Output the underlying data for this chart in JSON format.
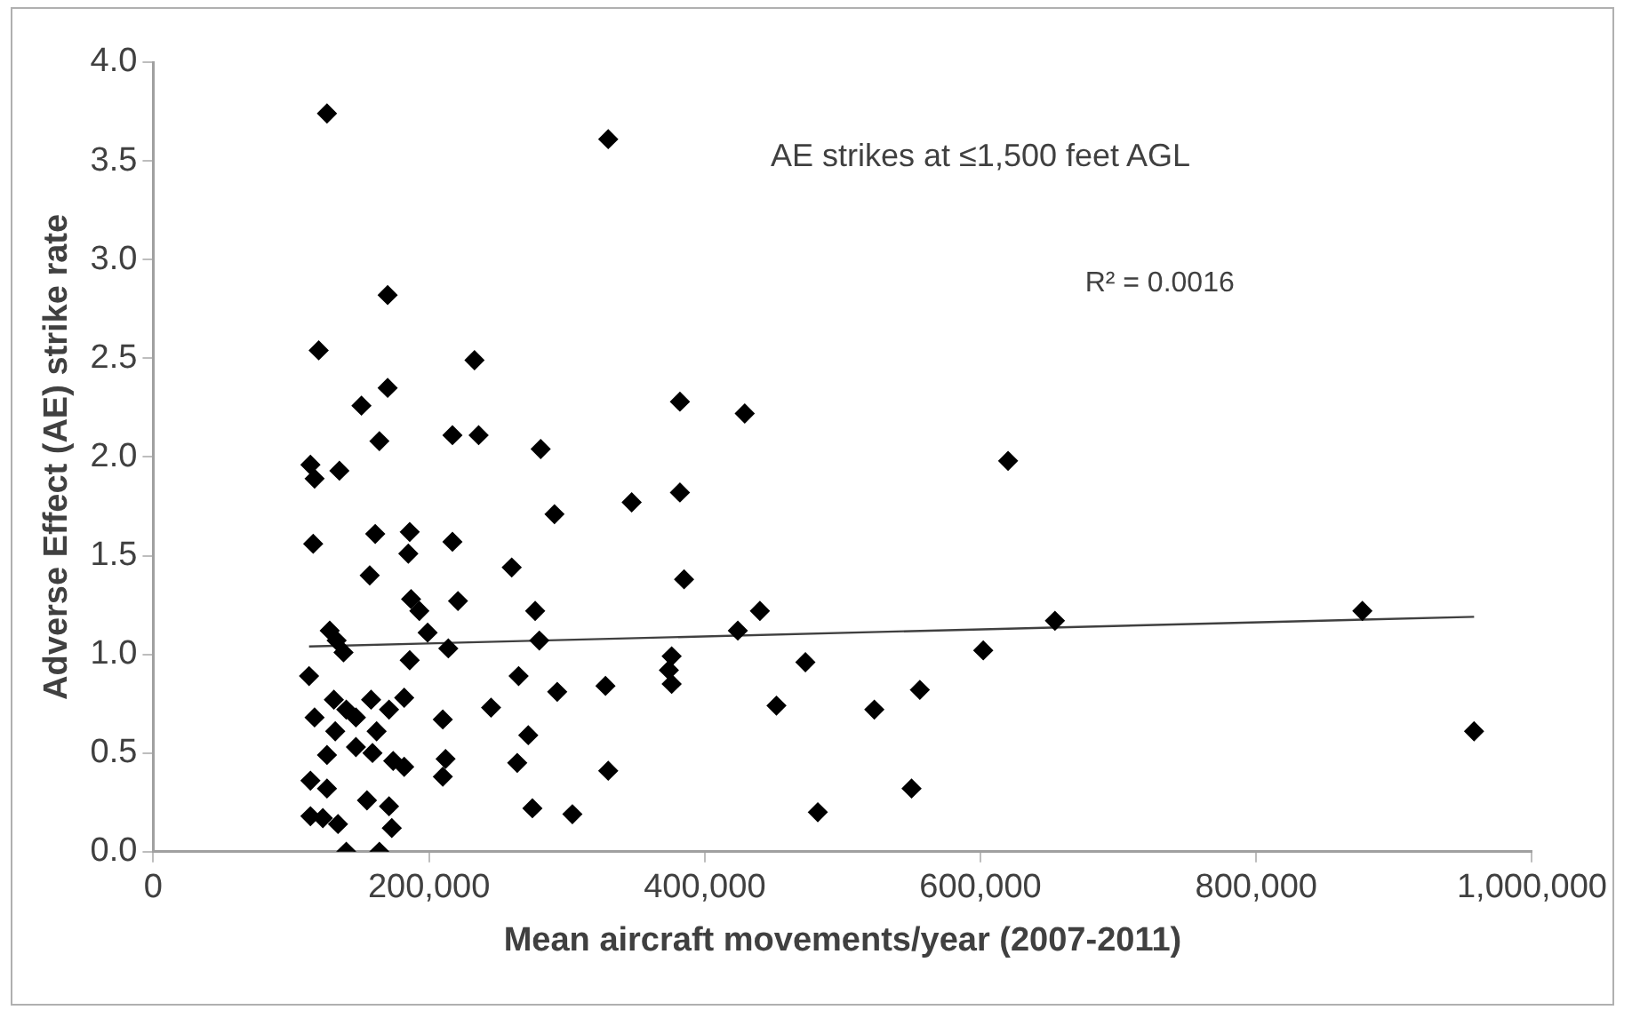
{
  "chart_data": {
    "type": "scatter",
    "xlabel": "Mean aircraft movements/year (2007-2011)",
    "ylabel": "Adverse Effect (AE) strike rate",
    "annotations": [
      "AE strikes at ≤1,500 feet AGL",
      "R² = 0.0016"
    ],
    "xlim": [
      0,
      1000000
    ],
    "xticks": [
      0,
      {
        "value": 200000,
        "label": "200,000"
      },
      {
        "value": 400000,
        "label": "400,000"
      },
      {
        "value": 600000,
        "label": "600,000"
      },
      {
        "value": 800000,
        "label": "800,000"
      },
      {
        "value": 1000000,
        "label": "1,000,000"
      }
    ],
    "ylim": [
      0,
      4
    ],
    "yticks": [
      {
        "value": 0,
        "label": "0.0"
      },
      {
        "value": 0.5,
        "label": "0.5"
      },
      {
        "value": 1,
        "label": "1.0"
      },
      {
        "value": 1.5,
        "label": "1.5"
      },
      {
        "value": 2,
        "label": "2.0"
      },
      {
        "value": 2.5,
        "label": "2.5"
      },
      {
        "value": 3,
        "label": "3.0"
      },
      {
        "value": 3.5,
        "label": "3.5"
      },
      {
        "value": 4,
        "label": "4.0"
      }
    ],
    "grid": false,
    "legend": false,
    "marker": "diamond",
    "series": [
      {
        "color": "#000000",
        "x": [
          126000,
          120000,
          170000,
          170000,
          151000,
          164000,
          114000,
          117000,
          135000,
          233000,
          217000,
          236000,
          116000,
          161000,
          186000,
          185000,
          157000,
          217000,
          260000,
          187000,
          193000,
          221000,
          277000,
          128000,
          133000,
          138000,
          199000,
          214000,
          186000,
          113000,
          265000,
          280000,
          117000,
          131000,
          140000,
          147000,
          158000,
          171000,
          182000,
          132000,
          162000,
          126000,
          147000,
          159000,
          174000,
          182000,
          210000,
          212000,
          210000,
          245000,
          272000,
          264000,
          114000,
          126000,
          114000,
          123000,
          134000,
          155000,
          171000,
          173000,
          275000,
          140000,
          164000,
          330000,
          281000,
          291000,
          293000,
          304000,
          328000,
          330000,
          347000,
          382000,
          382000,
          385000,
          376000,
          374000,
          376000,
          429000,
          424000,
          440000,
          473000,
          452000,
          482000,
          523000,
          556000,
          550000,
          602000,
          620000,
          654000,
          877000,
          958000
        ],
        "values": [
          3.74,
          2.54,
          2.82,
          2.35,
          2.26,
          2.08,
          1.96,
          1.89,
          1.93,
          2.49,
          2.11,
          2.11,
          1.56,
          1.61,
          1.62,
          1.51,
          1.4,
          1.57,
          1.44,
          1.28,
          1.22,
          1.27,
          1.22,
          1.12,
          1.07,
          1.01,
          1.11,
          1.03,
          0.97,
          0.89,
          0.89,
          1.07,
          0.68,
          0.77,
          0.72,
          0.68,
          0.77,
          0.72,
          0.78,
          0.61,
          0.61,
          0.49,
          0.53,
          0.5,
          0.46,
          0.43,
          0.67,
          0.47,
          0.38,
          0.73,
          0.59,
          0.45,
          0.36,
          0.32,
          0.18,
          0.17,
          0.14,
          0.26,
          0.23,
          0.12,
          0.22,
          0,
          0,
          3.61,
          2.04,
          1.71,
          0.81,
          0.19,
          0.84,
          0.41,
          1.77,
          2.28,
          1.82,
          1.38,
          0.99,
          0.92,
          0.85,
          2.22,
          1.12,
          1.22,
          0.96,
          0.74,
          0.2,
          0.72,
          0.82,
          0.32,
          1.02,
          1.98,
          1.17,
          1.22,
          0.61
        ]
      },
      {
        "type": "line",
        "color": "#404040",
        "marker": "none",
        "x": [
          113000,
          958000
        ],
        "values": [
          1.04,
          1.19
        ]
      }
    ]
  }
}
